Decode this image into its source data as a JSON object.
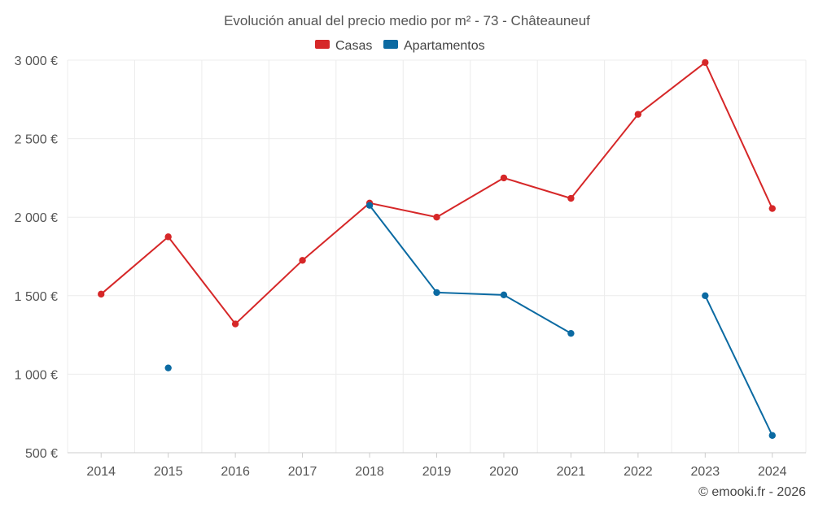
{
  "chart_data": {
    "type": "line",
    "title": "Evolución anual del precio medio por m² - 73 - Châteauneuf",
    "xlabel": "",
    "ylabel": "",
    "categories": [
      "2014",
      "2015",
      "2016",
      "2017",
      "2018",
      "2019",
      "2020",
      "2021",
      "2022",
      "2023",
      "2024"
    ],
    "ylim": [
      500,
      3000
    ],
    "y_ticks": [
      500,
      1000,
      1500,
      2000,
      2500,
      3000
    ],
    "y_tick_labels": [
      "500 €",
      "1 000 €",
      "1 500 €",
      "2 000 €",
      "2 500 €",
      "3 000 €"
    ],
    "grid": true,
    "legend_position": "top-center",
    "series": [
      {
        "name": "Casas",
        "color": "#d62728",
        "values": [
          1510,
          1875,
          1320,
          1725,
          2090,
          2000,
          2250,
          2120,
          2655,
          2985,
          2055
        ]
      },
      {
        "name": "Apartamentos",
        "color": "#0b6aa2",
        "values": [
          null,
          1040,
          null,
          null,
          2075,
          1520,
          1505,
          1260,
          null,
          1500,
          610
        ]
      }
    ]
  },
  "credit": "© emooki.fr - 2026"
}
